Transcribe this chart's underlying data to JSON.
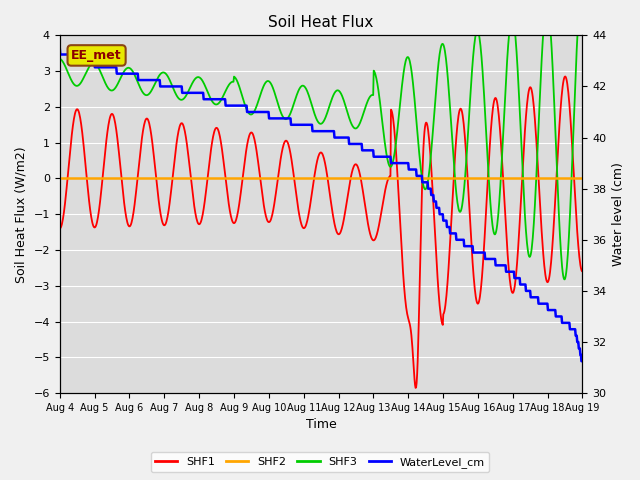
{
  "title": "Soil Heat Flux",
  "xlabel": "Time",
  "ylabel_left": "Soil Heat Flux (W/m2)",
  "ylabel_right": "Water level (cm)",
  "ylim_left": [
    -6.0,
    4.0
  ],
  "ylim_right": [
    30,
    44
  ],
  "yticks_left": [
    -6.0,
    -5.0,
    -4.0,
    -3.0,
    -2.0,
    -1.0,
    0.0,
    1.0,
    2.0,
    3.0,
    4.0
  ],
  "yticks_right": [
    30,
    32,
    34,
    36,
    38,
    40,
    42,
    44
  ],
  "xtick_labels": [
    "Aug 4",
    "Aug 5",
    "Aug 6",
    "Aug 7",
    "Aug 8",
    "Aug 9",
    "Aug 10",
    "Aug 11",
    "Aug 12",
    "Aug 13",
    "Aug 14",
    "Aug 15",
    "Aug 16",
    "Aug 17",
    "Aug 18",
    "Aug 19"
  ],
  "colors": {
    "SHF1": "#ff0000",
    "SHF2": "#ffa500",
    "SHF3": "#00cc00",
    "WaterLevel": "#0000ff",
    "plot_bg": "#dcdcdc",
    "fig_bg": "#f0f0f0"
  },
  "annotation_text": "EE_met",
  "annotation_facecolor": "#e8e800",
  "annotation_edgecolor": "#8B4513",
  "annotation_textcolor": "#8B0000"
}
